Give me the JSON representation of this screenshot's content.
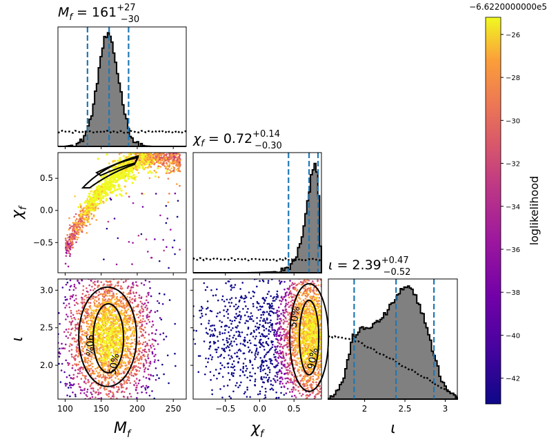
{
  "chart_data": {
    "type": "scatter",
    "subtype": "corner-plot",
    "parameters": [
      {
        "symbol": "M",
        "sub": "f",
        "label": "M_f",
        "median": "161",
        "plus": "+27",
        "minus": "−30",
        "range": [
          90,
          268
        ],
        "ticks": [
          100,
          150,
          200,
          250
        ],
        "quantiles": [
          131,
          161,
          188
        ]
      },
      {
        "symbol": "χ",
        "sub": "f",
        "label": "χ_f",
        "median": "0.72",
        "plus": "+0.14",
        "minus": "−0.30",
        "range": [
          -0.97,
          0.9
        ],
        "ticks": [
          -0.5,
          0.0,
          0.5
        ],
        "quantiles": [
          0.42,
          0.72,
          0.85
        ]
      },
      {
        "symbol": "ι",
        "sub": "",
        "label": "ι",
        "median": "2.39",
        "plus": "+0.47",
        "minus": "−0.52",
        "range": [
          1.55,
          3.15
        ],
        "ticks": [
          2.0,
          2.5,
          3.0
        ],
        "quantiles": [
          1.87,
          2.39,
          2.86
        ]
      }
    ],
    "titles": [
      "M_f = 161 +27/−30",
      "χ_f = 0.72 +0.14/−0.30",
      "ι = 2.39 +0.47/−0.52"
    ],
    "contour_levels": [
      "50%",
      "90%"
    ],
    "colorbar": {
      "label": "loglikelihood",
      "offset": "−6.6220000000e5",
      "ticks": [
        -26,
        -28,
        -30,
        -32,
        -34,
        -36,
        -38,
        -40,
        -42
      ],
      "range": [
        -43.2,
        -25.2
      ],
      "colormap": "plasma"
    },
    "histograms": {
      "M_f": {
        "x": [
          90,
          100,
          110,
          120,
          125,
          130,
          135,
          140,
          145,
          150,
          155,
          160,
          165,
          170,
          175,
          180,
          185,
          190,
          195,
          200,
          210,
          220,
          268
        ],
        "y": [
          0,
          0,
          0.01,
          0.03,
          0.07,
          0.14,
          0.24,
          0.38,
          0.6,
          0.82,
          0.97,
          1.0,
          0.93,
          0.76,
          0.58,
          0.4,
          0.24,
          0.12,
          0.05,
          0.02,
          0.005,
          0,
          0
        ]
      },
      "chi_f": {
        "x": [
          -0.97,
          -0.5,
          -0.2,
          0.0,
          0.2,
          0.3,
          0.4,
          0.45,
          0.5,
          0.55,
          0.6,
          0.65,
          0.7,
          0.75,
          0.8,
          0.85,
          0.88,
          0.9
        ],
        "y": [
          0,
          0,
          0,
          0.003,
          0.008,
          0.016,
          0.035,
          0.06,
          0.1,
          0.17,
          0.28,
          0.42,
          0.62,
          0.86,
          1.0,
          0.88,
          0.3,
          0.05
        ]
      },
      "iota": {
        "x": [
          1.55,
          1.65,
          1.75,
          1.85,
          1.95,
          2.05,
          2.15,
          2.25,
          2.35,
          2.45,
          2.55,
          2.65,
          2.75,
          2.85,
          2.95,
          3.05,
          3.15
        ],
        "y": [
          0.02,
          0.06,
          0.2,
          0.55,
          0.62,
          0.64,
          0.68,
          0.75,
          0.86,
          0.97,
          1.0,
          0.9,
          0.7,
          0.42,
          0.18,
          0.06,
          0.02
        ]
      }
    },
    "prior_curves": {
      "M_f": 0.13,
      "chi_f": 0.12,
      "iota": {
        "x": [
          1.55,
          1.8,
          2.0,
          2.2,
          2.4,
          2.6,
          2.8,
          3.0,
          3.15
        ],
        "y": [
          0.56,
          0.55,
          0.48,
          0.41,
          0.33,
          0.25,
          0.17,
          0.08,
          0.02
        ]
      }
    }
  }
}
